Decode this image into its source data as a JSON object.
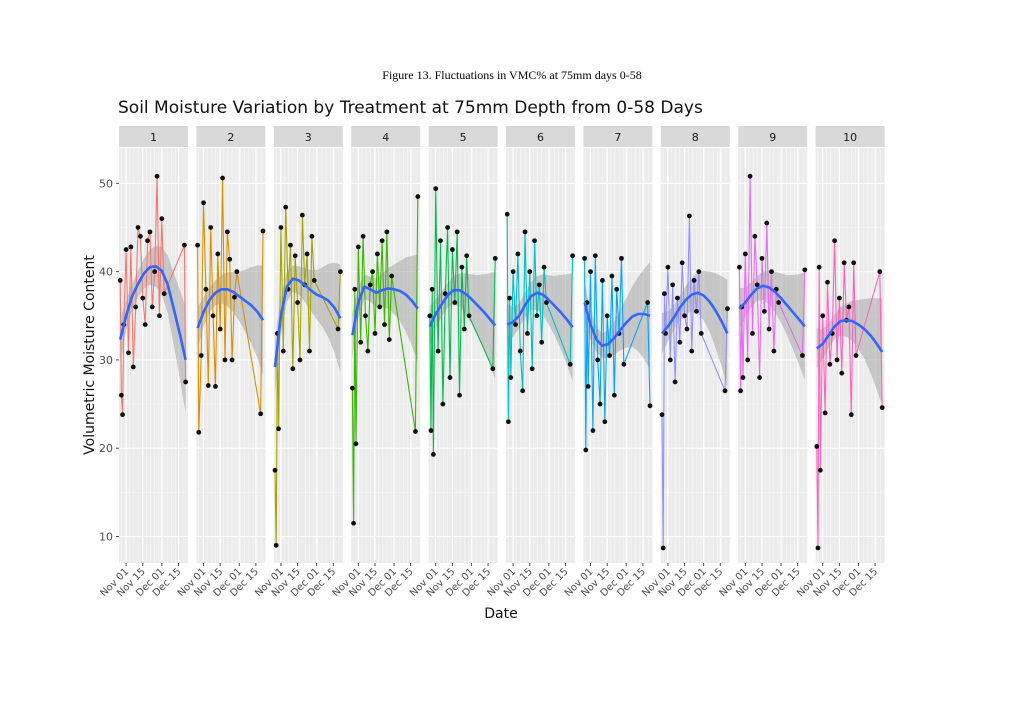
{
  "figure_caption": "Figure 13. Fluctuations in VMC% at 75mm days 0-58",
  "chart_data": {
    "type": "line",
    "title": "Soil Moisture Variation by Treatment at 75mm Depth from 0-58 Days",
    "xlabel": "Date",
    "ylabel": "Volumetric Moisture Content",
    "y_ticks": [
      10,
      20,
      30,
      40,
      50
    ],
    "ylim": [
      7,
      54
    ],
    "x_ticks": [
      "Nov 01",
      "Nov 15",
      "Dec 01",
      "Dec 15"
    ],
    "x_tick_dates": [
      "2017-11-01",
      "2017-11-15",
      "2017-12-01",
      "2017-12-15"
    ],
    "xlim": [
      "2017-10-26",
      "2017-12-23"
    ],
    "grid": true,
    "facet_strip_color": "#d9d9d9",
    "panel_background": "#ebebeb",
    "smooth_color": "#3366ff",
    "ribbon_color": "#a6a6a6",
    "point_color": "#111111",
    "series": [
      {
        "name": "1",
        "color": "#f8766d",
        "dates": [
          "2017-10-27",
          "2017-10-28",
          "2017-10-29",
          "2017-10-30",
          "2017-11-01",
          "2017-11-03",
          "2017-11-05",
          "2017-11-07",
          "2017-11-09",
          "2017-11-11",
          "2017-11-13",
          "2017-11-15",
          "2017-11-17",
          "2017-11-19",
          "2017-11-21",
          "2017-11-23",
          "2017-11-25",
          "2017-11-27",
          "2017-11-29",
          "2017-12-01",
          "2017-12-03",
          "2017-12-20",
          "2017-12-21"
        ],
        "values": [
          39,
          26,
          23.8,
          34,
          42.5,
          30.8,
          42.8,
          29.2,
          36,
          45,
          44,
          37,
          34,
          43.5,
          44.5,
          36,
          40,
          50.8,
          35,
          46,
          37.5,
          43,
          27.5
        ],
        "smooth": [
          32.3,
          35.0,
          37.2,
          38.6,
          39.8,
          40.5,
          40.6,
          40.1,
          38.5,
          35.8,
          33.0,
          30.0
        ],
        "ribbon": [
          2.5,
          1.7,
          1.4,
          1.5,
          1.7,
          2.0,
          2.3,
          2.7,
          3.3,
          4.1,
          5.0,
          6.0
        ]
      },
      {
        "name": "2",
        "color": "#d89000",
        "dates": [
          "2017-10-27",
          "2017-10-28",
          "2017-10-30",
          "2017-11-01",
          "2017-11-03",
          "2017-11-05",
          "2017-11-07",
          "2017-11-09",
          "2017-11-11",
          "2017-11-13",
          "2017-11-15",
          "2017-11-17",
          "2017-11-19",
          "2017-11-21",
          "2017-11-23",
          "2017-11-25",
          "2017-11-27",
          "2017-11-29",
          "2017-12-19",
          "2017-12-21"
        ],
        "values": [
          43,
          21.8,
          30.5,
          47.8,
          38,
          27.1,
          45,
          35,
          27,
          42,
          33.5,
          50.6,
          30,
          44.5,
          41.4,
          30,
          37.1,
          40,
          23.9,
          44.6
        ],
        "smooth": [
          33.6,
          35.4,
          36.8,
          37.6,
          38.0,
          38.0,
          37.7,
          37.2,
          36.7,
          36.2,
          35.5,
          34.5
        ],
        "ribbon": [
          2.3,
          1.7,
          1.4,
          1.4,
          1.6,
          1.9,
          2.3,
          2.8,
          3.5,
          4.3,
          5.2,
          6.2
        ]
      },
      {
        "name": "3",
        "color": "#a3a500",
        "dates": [
          "2017-10-27",
          "2017-10-28",
          "2017-10-29",
          "2017-10-30",
          "2017-11-01",
          "2017-11-03",
          "2017-11-05",
          "2017-11-07",
          "2017-11-09",
          "2017-11-11",
          "2017-11-13",
          "2017-11-15",
          "2017-11-17",
          "2017-11-19",
          "2017-11-21",
          "2017-11-23",
          "2017-11-25",
          "2017-11-27",
          "2017-11-29",
          "2017-12-19",
          "2017-12-21"
        ],
        "values": [
          17.5,
          9,
          33,
          22.2,
          45,
          31,
          47.3,
          38,
          43,
          29,
          41.8,
          36.5,
          30,
          46.4,
          38.5,
          42,
          31,
          44,
          39,
          33.5,
          40
        ],
        "smooth": [
          29.2,
          35.0,
          38.3,
          39.2,
          39.0,
          38.5,
          37.9,
          37.4,
          37.1,
          36.7,
          35.9,
          34.7
        ],
        "ribbon": [
          3.0,
          2.2,
          1.7,
          1.5,
          1.6,
          1.9,
          2.3,
          2.8,
          3.4,
          4.2,
          5.1,
          6.1
        ]
      },
      {
        "name": "4",
        "color": "#39b600",
        "dates": [
          "2017-10-27",
          "2017-10-28",
          "2017-10-29",
          "2017-10-30",
          "2017-11-01",
          "2017-11-03",
          "2017-11-05",
          "2017-11-07",
          "2017-11-09",
          "2017-11-11",
          "2017-11-13",
          "2017-11-15",
          "2017-11-17",
          "2017-11-19",
          "2017-11-21",
          "2017-11-23",
          "2017-11-25",
          "2017-11-27",
          "2017-11-29",
          "2017-12-19",
          "2017-12-21"
        ],
        "values": [
          26.8,
          11.5,
          38,
          20.5,
          42.8,
          32,
          44,
          35,
          31,
          38.5,
          40,
          33,
          42,
          36,
          43.5,
          34,
          44.5,
          32.3,
          39.5,
          21.9,
          48.5
        ],
        "smooth": [
          32.8,
          36.5,
          38.3,
          38.0,
          37.6,
          37.9,
          38.1,
          38.0,
          37.8,
          37.4,
          36.7,
          35.8
        ],
        "ribbon": [
          2.5,
          1.7,
          1.4,
          1.4,
          1.6,
          1.9,
          2.3,
          2.8,
          3.4,
          4.2,
          5.1,
          6.1
        ]
      },
      {
        "name": "5",
        "color": "#00bb4e",
        "dates": [
          "2017-10-27",
          "2017-10-28",
          "2017-10-29",
          "2017-10-30",
          "2017-11-01",
          "2017-11-03",
          "2017-11-05",
          "2017-11-07",
          "2017-11-09",
          "2017-11-11",
          "2017-11-13",
          "2017-11-15",
          "2017-11-17",
          "2017-11-19",
          "2017-11-21",
          "2017-11-23",
          "2017-11-25",
          "2017-11-27",
          "2017-11-29",
          "2017-12-19",
          "2017-12-21"
        ],
        "values": [
          35,
          22,
          38,
          19.3,
          49.4,
          31,
          43.5,
          25,
          37.5,
          45,
          28,
          42.5,
          36.5,
          44.5,
          26,
          40.5,
          33.5,
          41.8,
          35,
          29,
          41.5
        ],
        "smooth": [
          33.8,
          35.2,
          36.3,
          37.3,
          37.9,
          37.9,
          37.5,
          36.9,
          36.2,
          35.5,
          34.7,
          33.9
        ],
        "ribbon": [
          2.3,
          1.7,
          1.4,
          1.4,
          1.6,
          1.9,
          2.3,
          2.8,
          3.4,
          4.2,
          5.1,
          6.1
        ]
      },
      {
        "name": "6",
        "color": "#00bfc4",
        "dates": [
          "2017-10-27",
          "2017-10-28",
          "2017-10-29",
          "2017-10-30",
          "2017-11-01",
          "2017-11-03",
          "2017-11-05",
          "2017-11-07",
          "2017-11-09",
          "2017-11-11",
          "2017-11-13",
          "2017-11-15",
          "2017-11-17",
          "2017-11-19",
          "2017-11-21",
          "2017-11-23",
          "2017-11-25",
          "2017-11-27",
          "2017-11-29",
          "2017-12-19",
          "2017-12-21"
        ],
        "values": [
          46.5,
          23,
          37,
          28,
          40,
          34,
          42,
          31,
          26.5,
          44.5,
          33,
          40,
          29,
          43.5,
          35,
          38.5,
          32,
          40.5,
          36.5,
          29.5,
          41.8
        ],
        "smooth": [
          34.0,
          34.3,
          35.0,
          36.2,
          37.2,
          37.6,
          37.4,
          36.8,
          36.1,
          35.4,
          34.6,
          33.7
        ],
        "ribbon": [
          2.3,
          1.7,
          1.4,
          1.4,
          1.6,
          1.9,
          2.3,
          2.8,
          3.4,
          4.2,
          5.1,
          6.1
        ]
      },
      {
        "name": "7",
        "color": "#00a5ff",
        "dates": [
          "2017-10-27",
          "2017-10-28",
          "2017-10-29",
          "2017-10-30",
          "2017-11-01",
          "2017-11-03",
          "2017-11-05",
          "2017-11-07",
          "2017-11-09",
          "2017-11-11",
          "2017-11-13",
          "2017-11-15",
          "2017-11-17",
          "2017-11-19",
          "2017-11-21",
          "2017-11-23",
          "2017-11-25",
          "2017-11-27",
          "2017-11-29",
          "2017-12-19",
          "2017-12-21"
        ],
        "values": [
          41.5,
          19.8,
          36.5,
          27,
          40,
          22,
          41.8,
          30,
          25,
          39,
          23,
          35,
          30.5,
          39.5,
          26,
          38,
          33,
          41.5,
          29.5,
          36.5,
          24.8
        ],
        "smooth": [
          36.5,
          34.0,
          32.3,
          31.6,
          31.8,
          32.5,
          33.4,
          34.2,
          34.9,
          35.2,
          35.2,
          35.0
        ],
        "ribbon": [
          2.3,
          1.7,
          1.4,
          1.4,
          1.6,
          1.9,
          2.3,
          2.8,
          3.4,
          4.2,
          5.1,
          6.1
        ]
      },
      {
        "name": "8",
        "color": "#9590ff",
        "dates": [
          "2017-10-27",
          "2017-10-28",
          "2017-10-29",
          "2017-10-30",
          "2017-11-01",
          "2017-11-03",
          "2017-11-05",
          "2017-11-07",
          "2017-11-09",
          "2017-11-11",
          "2017-11-13",
          "2017-11-15",
          "2017-11-17",
          "2017-11-19",
          "2017-11-21",
          "2017-11-23",
          "2017-11-25",
          "2017-11-27",
          "2017-11-29",
          "2017-12-19",
          "2017-12-21"
        ],
        "values": [
          23.8,
          8.7,
          37.5,
          33,
          40.5,
          30,
          38.5,
          27.5,
          37,
          32,
          41,
          35,
          33.5,
          46.3,
          31,
          39,
          35.5,
          40,
          33,
          26.5,
          35.8
        ],
        "smooth": [
          33.0,
          33.8,
          34.8,
          35.9,
          36.8,
          37.4,
          37.6,
          37.3,
          36.6,
          35.6,
          34.4,
          33.0
        ],
        "ribbon": [
          2.3,
          1.7,
          1.4,
          1.4,
          1.6,
          1.9,
          2.3,
          2.8,
          3.4,
          4.2,
          5.1,
          6.1
        ]
      },
      {
        "name": "9",
        "color": "#e76bf3",
        "dates": [
          "2017-10-27",
          "2017-10-28",
          "2017-10-29",
          "2017-10-30",
          "2017-11-01",
          "2017-11-03",
          "2017-11-05",
          "2017-11-07",
          "2017-11-09",
          "2017-11-11",
          "2017-11-13",
          "2017-11-15",
          "2017-11-17",
          "2017-11-19",
          "2017-11-21",
          "2017-11-23",
          "2017-11-25",
          "2017-11-27",
          "2017-11-29",
          "2017-12-19",
          "2017-12-21"
        ],
        "values": [
          40.5,
          26.5,
          36,
          28,
          42,
          30,
          50.8,
          33,
          44,
          38.5,
          28,
          41.5,
          35.5,
          45.5,
          33.5,
          40,
          31,
          38,
          36.5,
          30.5,
          40.2
        ],
        "smooth": [
          35.8,
          36.5,
          37.4,
          38.1,
          38.4,
          38.2,
          37.7,
          37.0,
          36.2,
          35.4,
          34.6,
          33.8
        ],
        "ribbon": [
          2.3,
          1.7,
          1.4,
          1.4,
          1.6,
          1.9,
          2.3,
          2.8,
          3.4,
          4.2,
          5.1,
          6.1
        ]
      },
      {
        "name": "10",
        "color": "#ff62bc",
        "dates": [
          "2017-10-27",
          "2017-10-28",
          "2017-10-29",
          "2017-10-30",
          "2017-11-01",
          "2017-11-03",
          "2017-11-05",
          "2017-11-07",
          "2017-11-09",
          "2017-11-11",
          "2017-11-13",
          "2017-11-15",
          "2017-11-17",
          "2017-11-19",
          "2017-11-21",
          "2017-11-23",
          "2017-11-25",
          "2017-11-27",
          "2017-11-29",
          "2017-12-19",
          "2017-12-21"
        ],
        "values": [
          20.2,
          8.7,
          40.5,
          17.5,
          35,
          24,
          38.8,
          29.5,
          33,
          43.5,
          30,
          37,
          28.5,
          41,
          34.5,
          36,
          23.8,
          41,
          30.5,
          40,
          24.6
        ],
        "smooth": [
          31.3,
          31.8,
          32.8,
          33.8,
          34.4,
          34.5,
          34.4,
          34.0,
          33.5,
          32.8,
          31.9,
          30.9
        ],
        "ribbon": [
          2.3,
          1.7,
          1.4,
          1.4,
          1.6,
          1.9,
          2.3,
          2.8,
          3.4,
          4.2,
          5.1,
          6.1
        ]
      }
    ]
  }
}
